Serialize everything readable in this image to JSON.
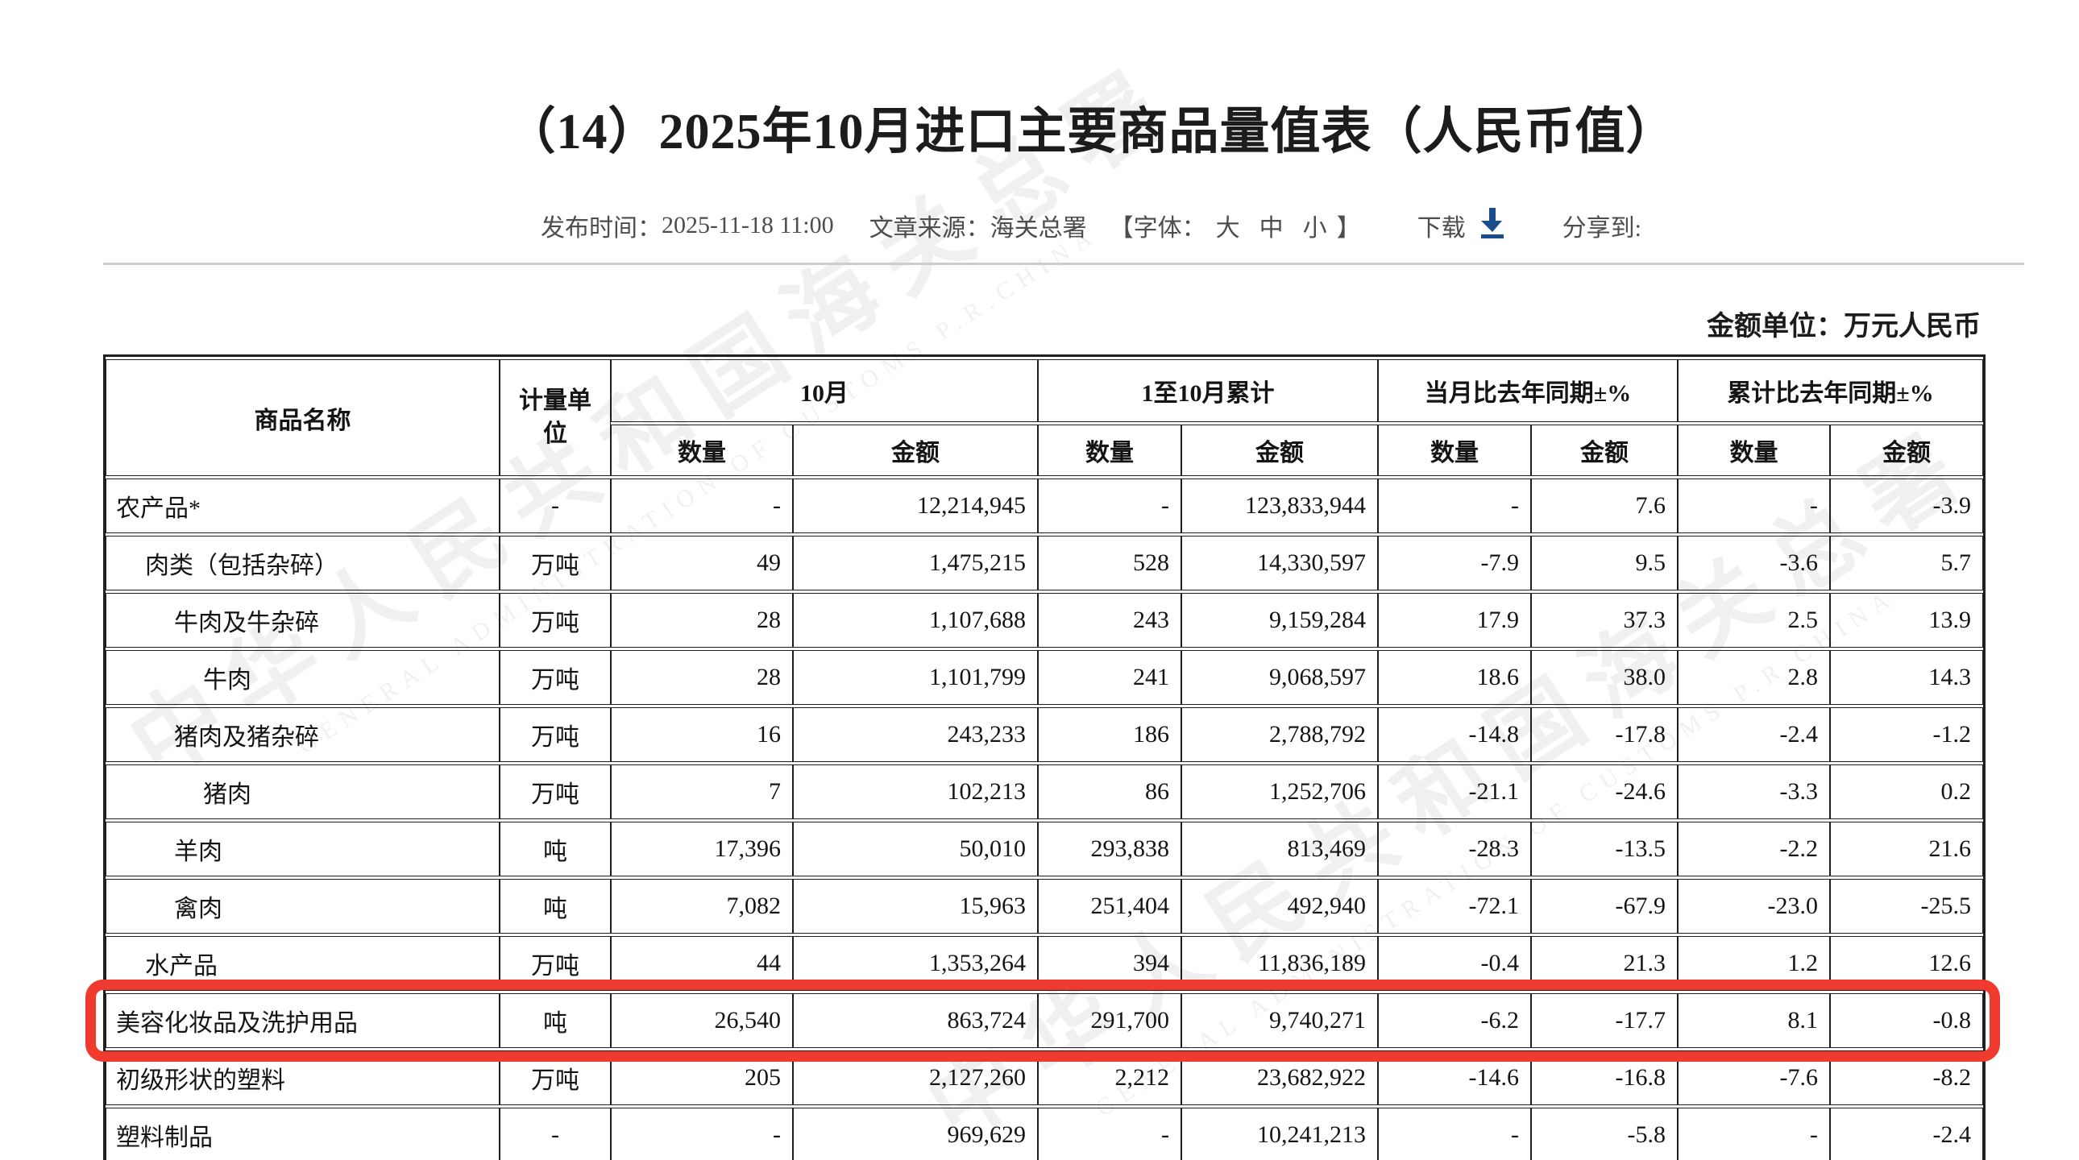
{
  "page": {
    "title": "（14）2025年10月进口主要商品量值表（人民币值）",
    "unit_note": "金额单位：万元人民币"
  },
  "meta": {
    "publish_label": "发布时间：",
    "publish_value": "2025-11-18 11:00",
    "source_label": "文章来源：",
    "source_value": "海关总署",
    "font_label_open": "【字体：",
    "font_large": "大",
    "font_medium": "中",
    "font_small": "小",
    "font_label_close": "】",
    "download_label": "下载",
    "share_label": "分享到:"
  },
  "watermark": {
    "cn": "中华人民共和国海关总署",
    "en": "GENERAL ADMINISTRATION OF CUSTOMS P.R.CHINA"
  },
  "colors": {
    "highlight_red": "#ef3a2d",
    "download_blue": "#1b4d8e",
    "divider_gray": "#cccccc"
  },
  "table": {
    "header": {
      "col_product": "商品名称",
      "col_unit": "计量单位",
      "group_month": "10月",
      "group_cumulative": "1至10月累计",
      "group_month_yoy": "当月比去年同期±%",
      "group_cumulative_yoy": "累计比去年同期±%",
      "sub_qty": "数量",
      "sub_value": "金额"
    },
    "rows": [
      {
        "name": "农产品*",
        "indent": 0,
        "unit": "-",
        "m_qty": "-",
        "m_val": "12,214,945",
        "c_qty": "-",
        "c_val": "123,833,944",
        "my_qty": "-",
        "my_val": "7.6",
        "cy_qty": "-",
        "cy_val": "-3.9",
        "highlight": false
      },
      {
        "name": "肉类（包括杂碎）",
        "indent": 1,
        "unit": "万吨",
        "m_qty": "49",
        "m_val": "1,475,215",
        "c_qty": "528",
        "c_val": "14,330,597",
        "my_qty": "-7.9",
        "my_val": "9.5",
        "cy_qty": "-3.6",
        "cy_val": "5.7",
        "highlight": false
      },
      {
        "name": "牛肉及牛杂碎",
        "indent": 2,
        "unit": "万吨",
        "m_qty": "28",
        "m_val": "1,107,688",
        "c_qty": "243",
        "c_val": "9,159,284",
        "my_qty": "17.9",
        "my_val": "37.3",
        "cy_qty": "2.5",
        "cy_val": "13.9",
        "highlight": false
      },
      {
        "name": "牛肉",
        "indent": 3,
        "unit": "万吨",
        "m_qty": "28",
        "m_val": "1,101,799",
        "c_qty": "241",
        "c_val": "9,068,597",
        "my_qty": "18.6",
        "my_val": "38.0",
        "cy_qty": "2.8",
        "cy_val": "14.3",
        "highlight": false
      },
      {
        "name": "猪肉及猪杂碎",
        "indent": 2,
        "unit": "万吨",
        "m_qty": "16",
        "m_val": "243,233",
        "c_qty": "186",
        "c_val": "2,788,792",
        "my_qty": "-14.8",
        "my_val": "-17.8",
        "cy_qty": "-2.4",
        "cy_val": "-1.2",
        "highlight": false
      },
      {
        "name": "猪肉",
        "indent": 3,
        "unit": "万吨",
        "m_qty": "7",
        "m_val": "102,213",
        "c_qty": "86",
        "c_val": "1,252,706",
        "my_qty": "-21.1",
        "my_val": "-24.6",
        "cy_qty": "-3.3",
        "cy_val": "0.2",
        "highlight": false
      },
      {
        "name": "羊肉",
        "indent": 2,
        "unit": "吨",
        "m_qty": "17,396",
        "m_val": "50,010",
        "c_qty": "293,838",
        "c_val": "813,469",
        "my_qty": "-28.3",
        "my_val": "-13.5",
        "cy_qty": "-2.2",
        "cy_val": "21.6",
        "highlight": false
      },
      {
        "name": "禽肉",
        "indent": 2,
        "unit": "吨",
        "m_qty": "7,082",
        "m_val": "15,963",
        "c_qty": "251,404",
        "c_val": "492,940",
        "my_qty": "-72.1",
        "my_val": "-67.9",
        "cy_qty": "-23.0",
        "cy_val": "-25.5",
        "highlight": false
      },
      {
        "name": "水产品",
        "indent": 1,
        "unit": "万吨",
        "m_qty": "44",
        "m_val": "1,353,264",
        "c_qty": "394",
        "c_val": "11,836,189",
        "my_qty": "-0.4",
        "my_val": "21.3",
        "cy_qty": "1.2",
        "cy_val": "12.6",
        "highlight": false
      },
      {
        "name": "美容化妆品及洗护用品",
        "indent": 0,
        "unit": "吨",
        "m_qty": "26,540",
        "m_val": "863,724",
        "c_qty": "291,700",
        "c_val": "9,740,271",
        "my_qty": "-6.2",
        "my_val": "-17.7",
        "cy_qty": "8.1",
        "cy_val": "-0.8",
        "highlight": true
      },
      {
        "name": "初级形状的塑料",
        "indent": 0,
        "unit": "万吨",
        "m_qty": "205",
        "m_val": "2,127,260",
        "c_qty": "2,212",
        "c_val": "23,682,922",
        "my_qty": "-14.6",
        "my_val": "-16.8",
        "cy_qty": "-7.6",
        "cy_val": "-8.2",
        "highlight": false
      },
      {
        "name": "塑料制品",
        "indent": 0,
        "unit": "-",
        "m_qty": "-",
        "m_val": "969,629",
        "c_qty": "-",
        "c_val": "10,241,213",
        "my_qty": "-",
        "my_val": "-5.8",
        "cy_qty": "-",
        "cy_val": "-2.4",
        "highlight": false
      }
    ]
  }
}
